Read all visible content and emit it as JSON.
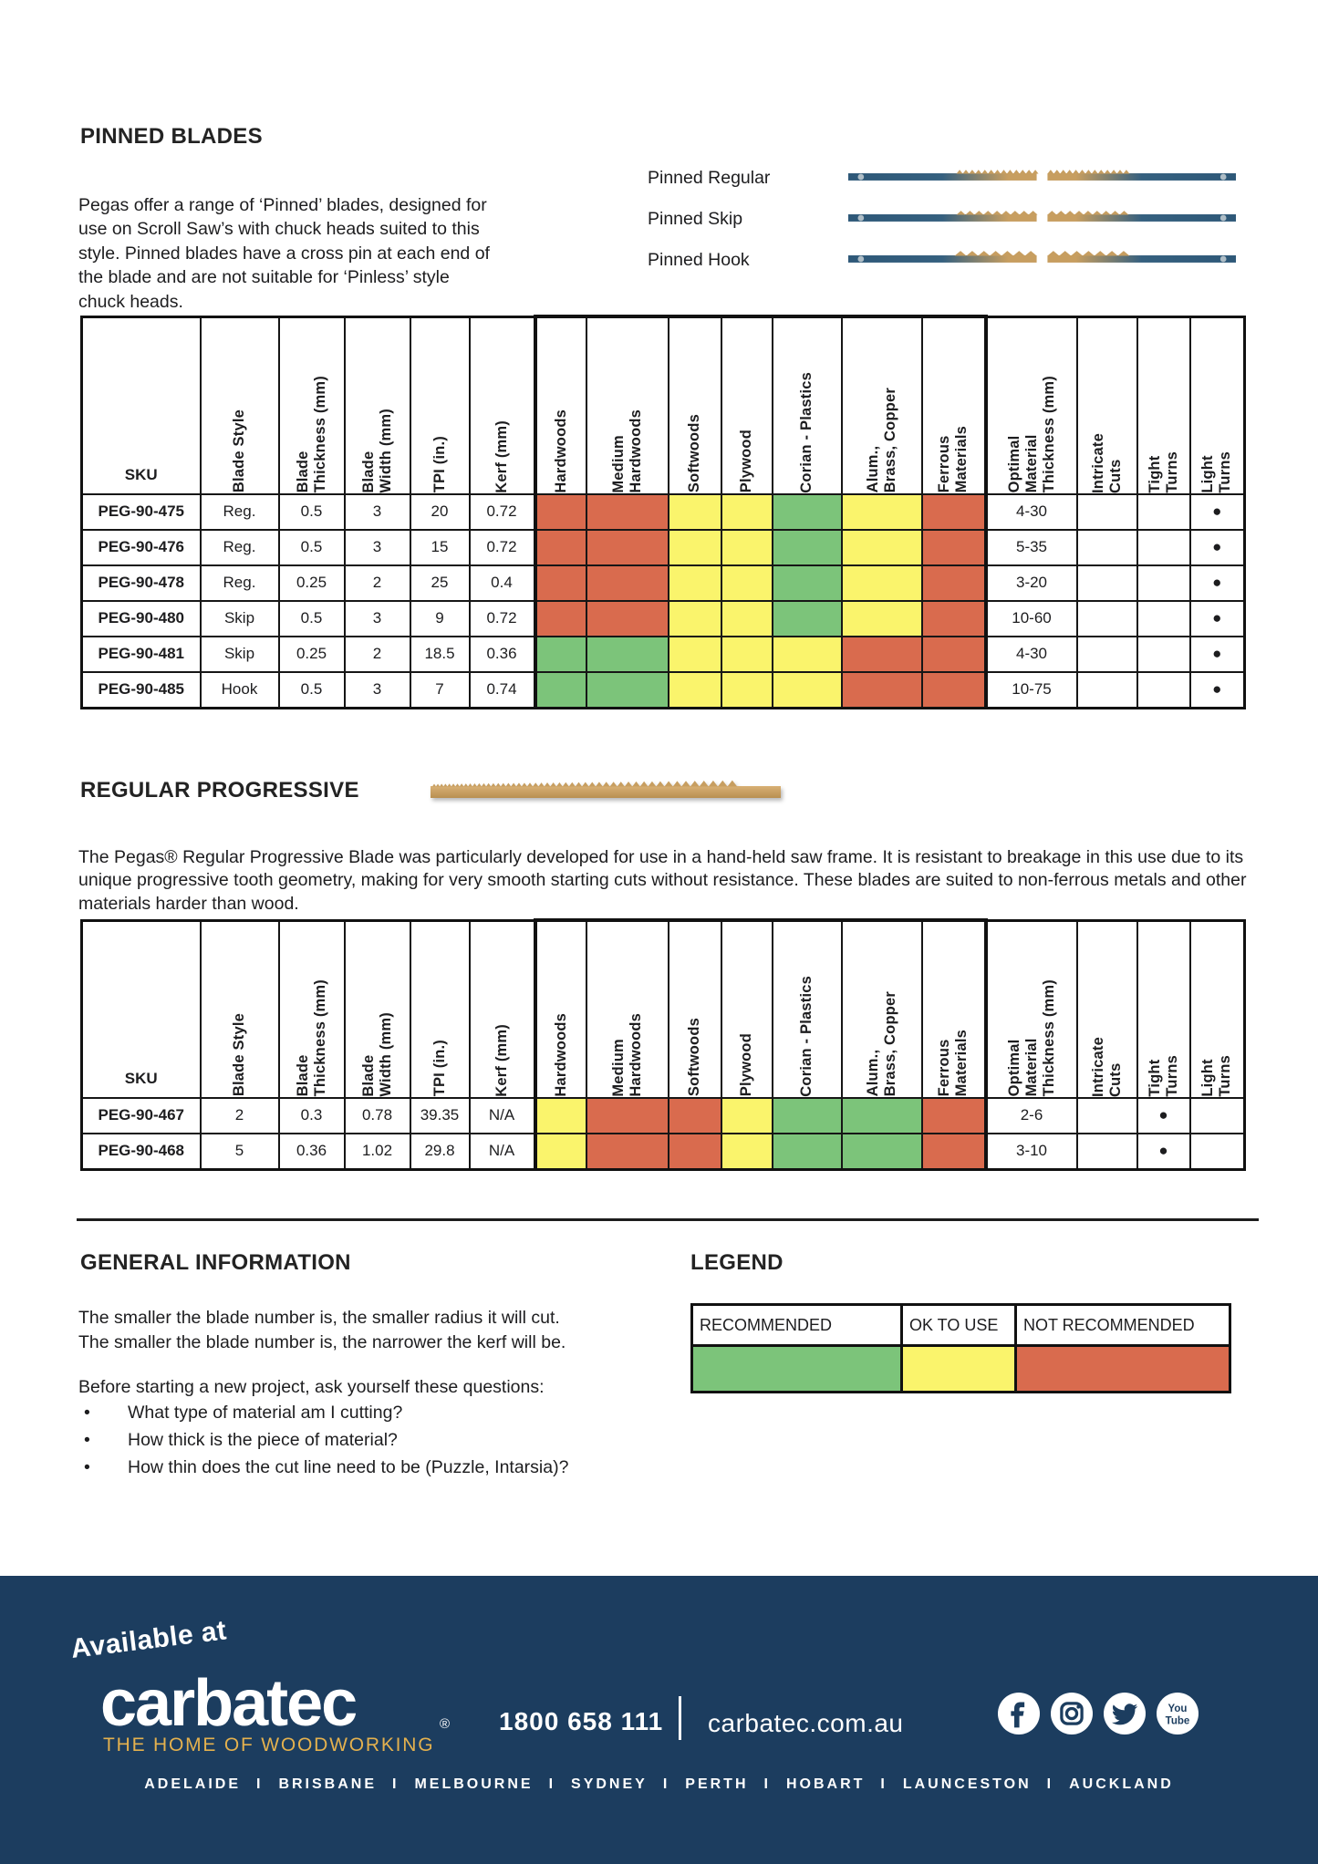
{
  "colors": {
    "green": "#7CC47A",
    "yellow": "#FAF46C",
    "red": "#D96B4E",
    "navy": "#1C3D5F",
    "gold": "#E4B14E"
  },
  "pinned": {
    "title": "PINNED BLADES",
    "intro": "Pegas offer a range of ‘Pinned’ blades, designed for use on Scroll Saw’s with chuck heads suited to this style. Pinned blades have a cross pin at each end of the blade and are not suitable for ‘Pinless’ style chuck heads.",
    "blades": [
      {
        "label": "Pinned Regular"
      },
      {
        "label": "Pinned Skip"
      },
      {
        "label": "Pinned Hook"
      }
    ]
  },
  "tables": {
    "headers": {
      "sku": "SKU",
      "blade_style": "Blade Style",
      "blade_thickness": "Blade\nThickness (mm)",
      "blade_width": "Blade\nWidth (mm)",
      "tpi": "TPI (in.)",
      "kerf": "Kerf (mm)",
      "materials": [
        "Hardwoods",
        "Medium\nHardwoods",
        "Softwoods",
        "Plywood",
        "Corian  - Plastics",
        "Alum.,\nBrass, Copper",
        "Ferrous\nMaterials"
      ],
      "optimal": "Optimal\nMaterial\nThickness (mm)",
      "intricate": "Intricate\nCuts",
      "tight": "Tight\nTurns",
      "light": "Light\nTurns"
    },
    "pinned_rows": [
      {
        "sku": "PEG-90-475",
        "blade_style": "Reg.",
        "blade_thickness": "0.5",
        "blade_width": "3",
        "tpi": "20",
        "kerf": "0.72",
        "materials": [
          "red",
          "red",
          "yellow",
          "yellow",
          "green",
          "yellow",
          "red"
        ],
        "optimal": "4-30",
        "intricate": "",
        "tight": "",
        "light": "●"
      },
      {
        "sku": "PEG-90-476",
        "blade_style": "Reg.",
        "blade_thickness": "0.5",
        "blade_width": "3",
        "tpi": "15",
        "kerf": "0.72",
        "materials": [
          "red",
          "red",
          "yellow",
          "yellow",
          "green",
          "yellow",
          "red"
        ],
        "optimal": "5-35",
        "intricate": "",
        "tight": "",
        "light": "●"
      },
      {
        "sku": "PEG-90-478",
        "blade_style": "Reg.",
        "blade_thickness": "0.25",
        "blade_width": "2",
        "tpi": "25",
        "kerf": "0.4",
        "materials": [
          "red",
          "red",
          "yellow",
          "yellow",
          "green",
          "yellow",
          "red"
        ],
        "optimal": "3-20",
        "intricate": "",
        "tight": "",
        "light": "●"
      },
      {
        "sku": "PEG-90-480",
        "blade_style": "Skip",
        "blade_thickness": "0.5",
        "blade_width": "3",
        "tpi": "9",
        "kerf": "0.72",
        "materials": [
          "red",
          "red",
          "yellow",
          "yellow",
          "green",
          "yellow",
          "red"
        ],
        "optimal": "10-60",
        "intricate": "",
        "tight": "",
        "light": "●"
      },
      {
        "sku": "PEG-90-481",
        "blade_style": "Skip",
        "blade_thickness": "0.25",
        "blade_width": "2",
        "tpi": "18.5",
        "kerf": "0.36",
        "materials": [
          "green",
          "green",
          "yellow",
          "yellow",
          "yellow",
          "red",
          "red"
        ],
        "optimal": "4-30",
        "intricate": "",
        "tight": "",
        "light": "●"
      },
      {
        "sku": "PEG-90-485",
        "blade_style": "Hook",
        "blade_thickness": "0.5",
        "blade_width": "3",
        "tpi": "7",
        "kerf": "0.74",
        "materials": [
          "green",
          "green",
          "yellow",
          "yellow",
          "yellow",
          "red",
          "red"
        ],
        "optimal": "10-75",
        "intricate": "",
        "tight": "",
        "light": "●"
      }
    ],
    "progressive_rows": [
      {
        "sku": "PEG-90-467",
        "blade_style": "2",
        "blade_thickness": "0.3",
        "blade_width": "0.78",
        "tpi": "39.35",
        "kerf": "N/A",
        "materials": [
          "yellow",
          "red",
          "red",
          "yellow",
          "green",
          "green",
          "red"
        ],
        "optimal": "2-6",
        "intricate": "",
        "tight": "●",
        "light": ""
      },
      {
        "sku": "PEG-90-468",
        "blade_style": "5",
        "blade_thickness": "0.36",
        "blade_width": "1.02",
        "tpi": "29.8",
        "kerf": "N/A",
        "materials": [
          "yellow",
          "red",
          "red",
          "yellow",
          "green",
          "green",
          "red"
        ],
        "optimal": "3-10",
        "intricate": "",
        "tight": "●",
        "light": ""
      }
    ]
  },
  "progressive": {
    "title": "REGULAR PROGRESSIVE",
    "paragraph": "The Pegas® Regular Progressive Blade was particularly developed for use in a hand-held saw frame. It is resistant to breakage in this use due to its unique progressive tooth geometry, making for very smooth starting cuts without resistance. These blades are suited to non-ferrous metals and other materials harder than wood."
  },
  "general": {
    "title": "GENERAL INFORMATION",
    "line1": "The smaller the blade number is, the smaller radius it will cut.",
    "line2": "The smaller the blade number is, the narrower the kerf will be.",
    "questions_intro": "Before starting a new project, ask yourself these questions:",
    "bullets": [
      "What type of material am I cutting?",
      "How thick is the piece of material?",
      "How thin does the cut line need to be (Puzzle, Intarsia)?"
    ]
  },
  "legend": {
    "title": "LEGEND",
    "items": [
      {
        "label": "RECOMMENDED",
        "color": "green"
      },
      {
        "label": "OK TO USE",
        "color": "yellow"
      },
      {
        "label": "NOT RECOMMENDED",
        "color": "red"
      }
    ]
  },
  "footer": {
    "available_at": "Available at",
    "logo": "carbatec",
    "registered": "®",
    "tagline": "THE HOME OF WOODWORKING",
    "phone": "1800 658 111",
    "website": "carbatec.com.au",
    "social_icons": [
      "facebook",
      "instagram",
      "twitter",
      "youtube"
    ],
    "cities": [
      "ADELAIDE",
      "BRISBANE",
      "MELBOURNE",
      "SYDNEY",
      "PERTH",
      "HOBART",
      "LAUNCESTON",
      "AUCKLAND"
    ],
    "cities_separator": "I"
  }
}
